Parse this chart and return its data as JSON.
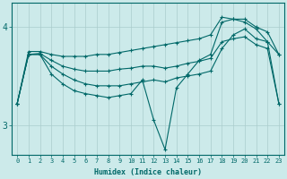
{
  "background_color": "#cceaea",
  "grid_color": "#aacccc",
  "line_color": "#006868",
  "xlabel": "Humidex (Indice chaleur)",
  "xlim": [
    -0.5,
    23.5
  ],
  "ylim": [
    2.7,
    4.25
  ],
  "yticks": [
    3,
    4
  ],
  "xticks": [
    0,
    1,
    2,
    3,
    4,
    5,
    6,
    7,
    8,
    9,
    10,
    11,
    12,
    13,
    14,
    15,
    16,
    17,
    18,
    19,
    20,
    21,
    22,
    23
  ],
  "series1_x": [
    0,
    1,
    2,
    3,
    4,
    5,
    6,
    7,
    8,
    9,
    10,
    11,
    12,
    13,
    14,
    15,
    16,
    17,
    18,
    19,
    20,
    21,
    22,
    23
  ],
  "series1_y": [
    3.22,
    3.75,
    3.75,
    3.72,
    3.7,
    3.7,
    3.7,
    3.72,
    3.72,
    3.74,
    3.76,
    3.78,
    3.8,
    3.82,
    3.84,
    3.86,
    3.88,
    3.92,
    4.1,
    4.08,
    4.08,
    4.0,
    3.95,
    3.72
  ],
  "series2_x": [
    0,
    1,
    2,
    3,
    4,
    5,
    6,
    7,
    8,
    9,
    10,
    11,
    12,
    13,
    14,
    15,
    16,
    17,
    18,
    19,
    20,
    21,
    22,
    23
  ],
  "series2_y": [
    3.22,
    3.72,
    3.73,
    3.66,
    3.6,
    3.57,
    3.55,
    3.55,
    3.55,
    3.57,
    3.58,
    3.6,
    3.6,
    3.58,
    3.6,
    3.63,
    3.65,
    3.68,
    3.85,
    3.88,
    3.9,
    3.82,
    3.78,
    3.22
  ],
  "series3_x": [
    0,
    1,
    2,
    3,
    4,
    5,
    6,
    7,
    8,
    9,
    10,
    11,
    12,
    13,
    14,
    15,
    16,
    17,
    18,
    19,
    20,
    21,
    22,
    23
  ],
  "series3_y": [
    3.22,
    3.72,
    3.72,
    3.6,
    3.52,
    3.46,
    3.42,
    3.4,
    3.4,
    3.4,
    3.42,
    3.44,
    3.46,
    3.44,
    3.48,
    3.5,
    3.52,
    3.55,
    3.78,
    3.92,
    3.98,
    3.88,
    3.85,
    3.22
  ],
  "series4_x": [
    0,
    1,
    2,
    3,
    4,
    5,
    6,
    7,
    8,
    9,
    10,
    11,
    12,
    13,
    14,
    15,
    16,
    17,
    18,
    19,
    20,
    21,
    22,
    23
  ],
  "series4_y": [
    3.22,
    3.72,
    3.72,
    3.52,
    3.42,
    3.35,
    3.32,
    3.3,
    3.28,
    3.3,
    3.32,
    3.46,
    3.05,
    2.75,
    3.38,
    3.52,
    3.66,
    3.72,
    4.05,
    4.08,
    4.05,
    3.98,
    3.85,
    3.72
  ]
}
